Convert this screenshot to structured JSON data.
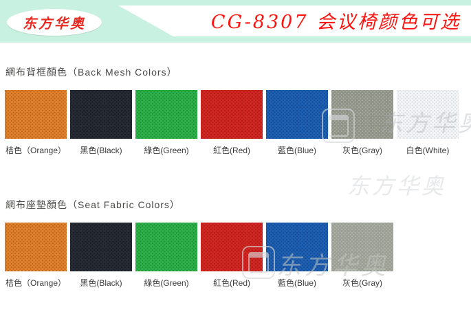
{
  "header": {
    "logo_text": "东方华奥",
    "title": "CG-8307 会议椅颜色可选",
    "colors": {
      "banner_mint": "#c9f1e1",
      "title_red": "#fb1410",
      "logo_red": "#e82820"
    }
  },
  "sections": [
    {
      "heading": "網布背框顏色（Back Mesh Colors）",
      "swatches": [
        {
          "name": "orange",
          "label": "桔色（Orange）",
          "base": "#e0832f",
          "dot": "#c2661c"
        },
        {
          "name": "black",
          "label": "黑色(Black)",
          "base": "#272b34",
          "dot": "#191d24"
        },
        {
          "name": "green",
          "label": "綠色(Green)",
          "base": "#2fb04a",
          "dot": "#1e9636"
        },
        {
          "name": "red",
          "label": "紅色(Red)",
          "base": "#d02823",
          "dot": "#b61a17"
        },
        {
          "name": "blue",
          "label": "藍色(Blue)",
          "base": "#1d60b4",
          "dot": "#154c93"
        },
        {
          "name": "gray",
          "label": "灰色(Gray)",
          "base": "#8d9186",
          "dot": "#a6aa9d"
        },
        {
          "name": "white",
          "label": "白色(White)",
          "base": "#f3f5f6",
          "dot": "#dde1e4"
        }
      ]
    },
    {
      "heading": "網布座墊顏色（Seat Fabric Colors）",
      "swatches": [
        {
          "name": "orange",
          "label": "桔色（Orange）",
          "base": "#e0832f",
          "dot": "#c2661c"
        },
        {
          "name": "black",
          "label": "黑色(Black)",
          "base": "#272b34",
          "dot": "#191d24"
        },
        {
          "name": "green",
          "label": "綠色(Green)",
          "base": "#2fb04a",
          "dot": "#1e9636"
        },
        {
          "name": "red",
          "label": "紅色(Red)",
          "base": "#d02823",
          "dot": "#b61a17"
        },
        {
          "name": "blue",
          "label": "藍色(Blue)",
          "base": "#1d60b4",
          "dot": "#154c93"
        },
        {
          "name": "gray",
          "label": "灰色(Gray)",
          "base": "#9a9e94",
          "dot": "#adb1a6"
        }
      ]
    }
  ],
  "watermark": {
    "text": "东方华奥"
  }
}
